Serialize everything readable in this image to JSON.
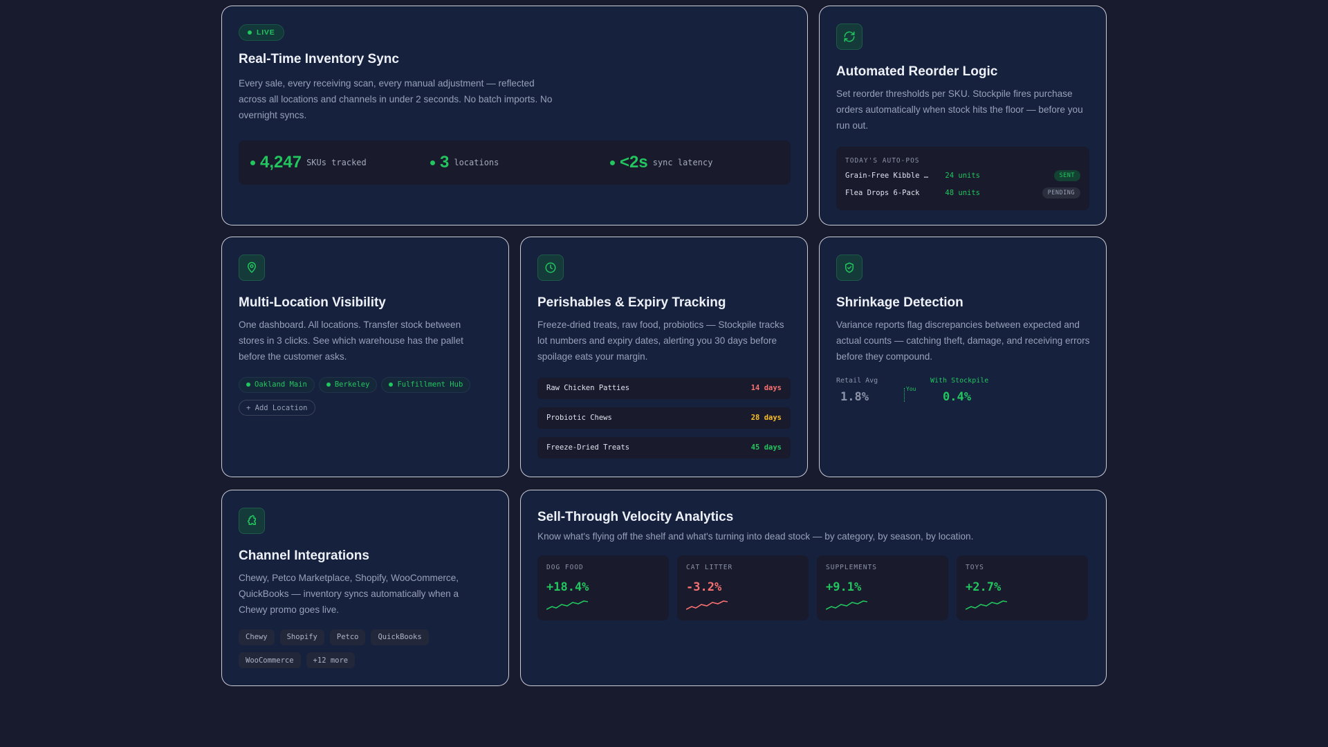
{
  "sync": {
    "badge": "LIVE",
    "title": "Real-Time Inventory Sync",
    "desc": "Every sale, every receiving scan, every manual adjustment — reflected across all locations and channels in under 2 seconds. No batch imports. No overnight syncs.",
    "stats": [
      {
        "value": "4,247",
        "label": "SKUs tracked"
      },
      {
        "value": "3",
        "label": "locations"
      },
      {
        "value": "<2s",
        "label": "sync latency"
      }
    ]
  },
  "reorder": {
    "icon": "refresh-icon",
    "title": "Automated Reorder Logic",
    "desc": "Set reorder thresholds per SKU. Stockpile fires purchase orders automatically when stock hits the floor — before you run out.",
    "po_heading": "TODAY'S AUTO-POS",
    "orders": [
      {
        "name": "Grain-Free Kibble …",
        "qty": "24 units",
        "status": "SENT"
      },
      {
        "name": "Flea Drops 6-Pack",
        "qty": "48 units",
        "status": "PENDING"
      }
    ]
  },
  "locations": {
    "icon": "map-pin-icon",
    "title": "Multi-Location Visibility",
    "desc": "One dashboard. All locations. Transfer stock between stores in 3 clicks. See which warehouse has the pallet before the customer asks.",
    "chips": [
      "Oakland Main",
      "Berkeley",
      "Fulfillment Hub"
    ],
    "add_label": "+ Add Location"
  },
  "expiry": {
    "icon": "clock-icon",
    "title": "Perishables & Expiry Tracking",
    "desc": "Freeze-dried treats, raw food, probiotics — Stockpile tracks lot numbers and expiry dates, alerting you 30 days before spoilage eats your margin.",
    "items": [
      {
        "name": "Raw Chicken Patties",
        "days": "14 days",
        "color": "#f87171"
      },
      {
        "name": "Probiotic Chews",
        "days": "28 days",
        "color": "#fbbf24"
      },
      {
        "name": "Freeze-Dried Treats",
        "days": "45 days",
        "color": "#22c55e"
      }
    ]
  },
  "shrinkage": {
    "icon": "shield-check-icon",
    "title": "Shrinkage Detection",
    "desc": "Variance reports flag discrepancies between expected and actual counts — catching theft, damage, and receiving errors before they compound.",
    "retail_label": "Retail Avg",
    "retail_value": "1.8%",
    "you_label": "You",
    "stockpile_label": "With Stockpile",
    "stockpile_value": "0.4%"
  },
  "integrations": {
    "icon": "puzzle-icon",
    "title": "Channel Integrations",
    "desc": "Chewy, Petco Marketplace, Shopify, WooCommerce, QuickBooks — inventory syncs automatically when a Chewy promo goes live.",
    "chips": [
      "Chewy",
      "Shopify",
      "Petco",
      "QuickBooks",
      "WooCommerce",
      "+12 more"
    ]
  },
  "velocity": {
    "title": "Sell-Through Velocity Analytics",
    "desc": "Know what's flying off the shelf and what's turning into dead stock — by category, by season, by location.",
    "cards": [
      {
        "category": "DOG FOOD",
        "change": "+18.4%",
        "color": "#22c55e"
      },
      {
        "category": "CAT LITTER",
        "change": "-3.2%",
        "color": "#f87171"
      },
      {
        "category": "SUPPLEMENTS",
        "change": "+9.1%",
        "color": "#22c55e"
      },
      {
        "category": "TOYS",
        "change": "+2.7%",
        "color": "#22c55e"
      }
    ]
  }
}
